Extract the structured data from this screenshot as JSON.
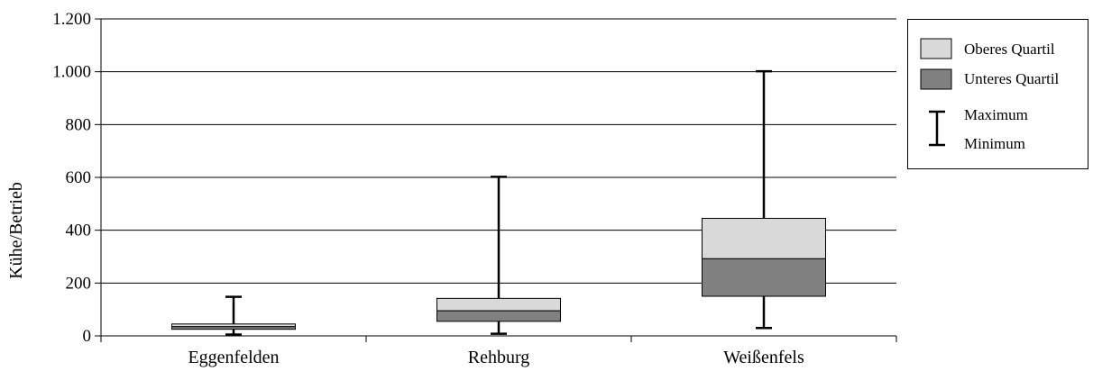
{
  "chart_data": {
    "type": "boxplot",
    "ylabel": "Kühe/Betrieb",
    "ylim": [
      0,
      1200
    ],
    "yticks": [
      {
        "value": 0,
        "label": "0"
      },
      {
        "value": 200,
        "label": "200"
      },
      {
        "value": 400,
        "label": "400"
      },
      {
        "value": 600,
        "label": "600"
      },
      {
        "value": 800,
        "label": "800"
      },
      {
        "value": 1000,
        "label": "1.000"
      },
      {
        "value": 1200,
        "label": "1.200"
      }
    ],
    "grid": true,
    "legend_position": "right",
    "categories": [
      "Eggenfelden",
      "Rehburg",
      "Weißenfels"
    ],
    "boxes": [
      {
        "category": "Eggenfelden",
        "min": 5,
        "q1": 25,
        "median": 35,
        "q3": 45,
        "max": 148
      },
      {
        "category": "Rehburg",
        "min": 8,
        "q1": 55,
        "median": 95,
        "q3": 142,
        "max": 602
      },
      {
        "category": "Weißenfels",
        "min": 30,
        "q1": 150,
        "median": 292,
        "q3": 445,
        "max": 1002
      }
    ],
    "legend": [
      {
        "key": "upper",
        "label": "Oberes Quartil",
        "color": "#d9d9d9"
      },
      {
        "key": "lower",
        "label": "Unteres Quartil",
        "color": "#808080"
      },
      {
        "key": "max",
        "label": "Maximum"
      },
      {
        "key": "min",
        "label": "Minimum"
      }
    ],
    "colors": {
      "upper_quartile": "#d9d9d9",
      "lower_quartile": "#808080",
      "axis": "#000000",
      "grid": "#000000"
    }
  }
}
